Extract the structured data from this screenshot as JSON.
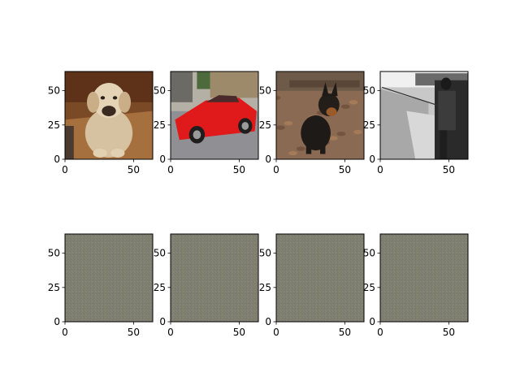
{
  "chart_data": [
    {
      "type": "image",
      "subject": "yellow-labrador-sitting",
      "xticks": [
        "0",
        "50"
      ],
      "yticks": [
        "0",
        "25",
        "50"
      ],
      "xlim": [
        0,
        64
      ],
      "ylim": [
        64,
        0
      ]
    },
    {
      "type": "image",
      "subject": "red-sports-car",
      "xticks": [
        "0",
        "50"
      ],
      "yticks": [
        "0",
        "25",
        "50"
      ],
      "xlim": [
        0,
        64
      ],
      "ylim": [
        64,
        0
      ]
    },
    {
      "type": "image",
      "subject": "black-tan-dog-on-leaves",
      "xticks": [
        "0",
        "50"
      ],
      "yticks": [
        "0",
        "25",
        "50"
      ],
      "xlim": [
        0,
        64
      ],
      "ylim": [
        64,
        0
      ]
    },
    {
      "type": "image",
      "subject": "grayscale-man-fishing",
      "xticks": [
        "0",
        "50"
      ],
      "yticks": [
        "0",
        "25",
        "50"
      ],
      "xlim": [
        0,
        64
      ],
      "ylim": [
        64,
        0
      ]
    },
    {
      "type": "image",
      "subject": "gray-noise-pattern",
      "xticks": [
        "0",
        "50"
      ],
      "yticks": [
        "0",
        "25",
        "50"
      ],
      "xlim": [
        0,
        64
      ],
      "ylim": [
        64,
        0
      ]
    },
    {
      "type": "image",
      "subject": "gray-noise-pattern",
      "xticks": [
        "0",
        "50"
      ],
      "yticks": [
        "0",
        "25",
        "50"
      ],
      "xlim": [
        0,
        64
      ],
      "ylim": [
        64,
        0
      ]
    },
    {
      "type": "image",
      "subject": "gray-noise-pattern",
      "xticks": [
        "0",
        "50"
      ],
      "yticks": [
        "0",
        "25",
        "50"
      ],
      "xlim": [
        0,
        64
      ],
      "ylim": [
        64,
        0
      ]
    },
    {
      "type": "image",
      "subject": "gray-noise-pattern",
      "xticks": [
        "0",
        "50"
      ],
      "yticks": [
        "0",
        "25",
        "50"
      ],
      "xlim": [
        0,
        64
      ],
      "ylim": [
        64,
        0
      ]
    }
  ]
}
